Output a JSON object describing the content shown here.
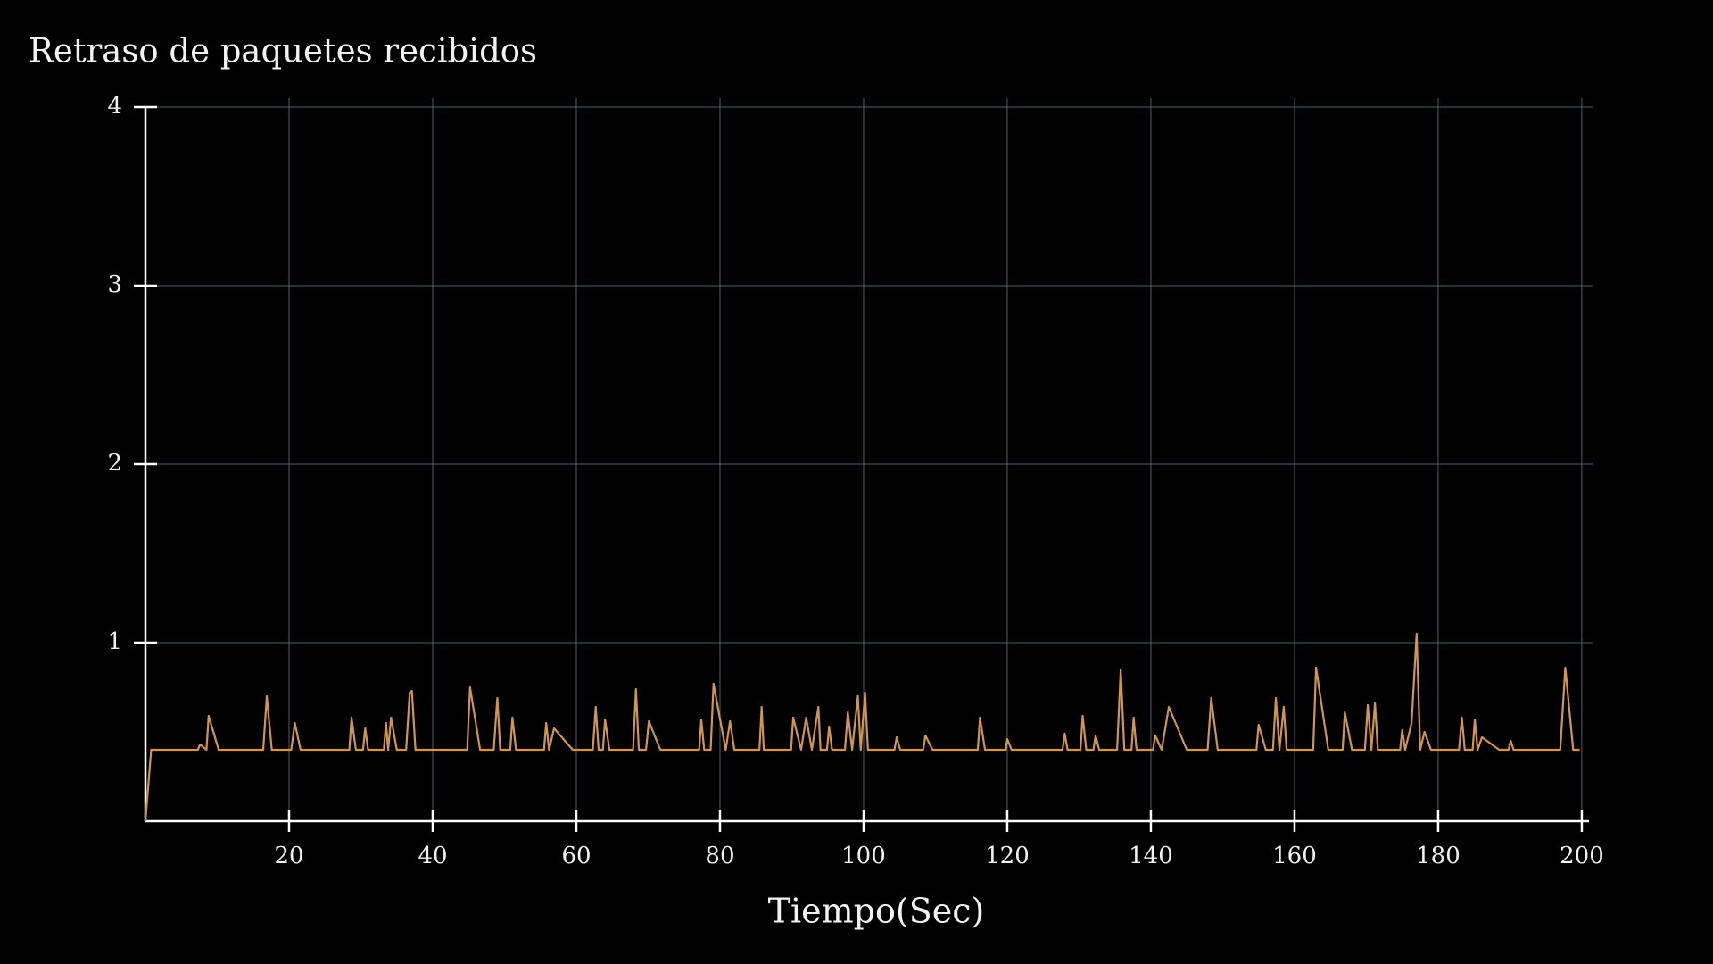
{
  "chart_data": {
    "type": "line",
    "title": "Retraso de paquetes recibidos",
    "x_label": "Tiempo(Sec)",
    "xlim": [
      0,
      201
    ],
    "ylim": [
      0,
      4
    ],
    "xticks": [
      20,
      40,
      60,
      80,
      100,
      120,
      140,
      160,
      180,
      200
    ],
    "yticks": [
      1,
      2,
      3,
      4
    ],
    "grid": true,
    "series": [
      {
        "color": "#d4954a",
        "x": [
          0,
          0.8,
          7.3,
          7.6,
          8.5,
          8.8,
          10.2,
          16.4,
          16.9,
          17.6,
          20.3,
          20.8,
          21.6,
          28.4,
          28.7,
          29.3,
          30.3,
          30.6,
          31,
          33.2,
          33.5,
          33.8,
          34.2,
          35,
          36.3,
          36.8,
          37.1,
          37.6,
          44.8,
          45.2,
          46.6,
          48.5,
          49,
          49.4,
          50.8,
          51.1,
          51.6,
          55.5,
          55.8,
          56.2,
          56.9,
          59.5,
          62.3,
          62.7,
          63.1,
          63.7,
          64,
          64.6,
          67.9,
          68.3,
          68.7,
          69.7,
          70.1,
          71.7,
          77.1,
          77.4,
          77.8,
          78.7,
          79.1,
          80.8,
          81.4,
          82,
          85.5,
          85.8,
          86.1,
          89.9,
          90.2,
          91.3,
          92,
          92.8,
          93.7,
          94,
          94.9,
          95.2,
          95.6,
          97.4,
          97.8,
          98.4,
          99.2,
          99.6,
          100.2,
          100.6,
          104.3,
          104.6,
          105.1,
          108.3,
          108.6,
          109.6,
          115.9,
          116.2,
          116.9,
          119.8,
          120,
          120.6,
          127.7,
          128,
          128.4,
          130.2,
          130.5,
          131,
          132,
          132.3,
          132.8,
          135.3,
          135.8,
          136.3,
          137.3,
          137.6,
          138,
          140.3,
          140.6,
          141.5,
          142.5,
          145,
          147.9,
          148.4,
          149.3,
          154.7,
          155,
          156,
          157,
          157.4,
          157.9,
          158.5,
          158.9,
          162.6,
          163,
          164.7,
          166.7,
          167,
          168,
          169.8,
          170.2,
          170.7,
          171.2,
          171.6,
          174.7,
          175,
          175.4,
          176.3,
          177,
          177.5,
          178.1,
          179,
          182.9,
          183.3,
          183.7,
          184.8,
          185.1,
          185.5,
          186.1,
          188.5,
          189.8,
          190.1,
          190.5,
          197,
          197.7,
          198.8,
          199.7
        ],
        "values": [
          0,
          0.4,
          0.4,
          0.43,
          0.4,
          0.59,
          0.4,
          0.4,
          0.7,
          0.4,
          0.4,
          0.55,
          0.4,
          0.4,
          0.58,
          0.4,
          0.4,
          0.52,
          0.4,
          0.4,
          0.55,
          0.4,
          0.58,
          0.4,
          0.4,
          0.72,
          0.73,
          0.4,
          0.4,
          0.75,
          0.4,
          0.4,
          0.69,
          0.4,
          0.4,
          0.58,
          0.4,
          0.4,
          0.55,
          0.4,
          0.52,
          0.4,
          0.4,
          0.64,
          0.4,
          0.4,
          0.57,
          0.4,
          0.4,
          0.74,
          0.4,
          0.4,
          0.56,
          0.4,
          0.4,
          0.57,
          0.4,
          0.4,
          0.77,
          0.4,
          0.56,
          0.4,
          0.4,
          0.64,
          0.4,
          0.4,
          0.58,
          0.4,
          0.58,
          0.4,
          0.64,
          0.4,
          0.4,
          0.53,
          0.4,
          0.4,
          0.61,
          0.4,
          0.7,
          0.4,
          0.72,
          0.4,
          0.4,
          0.47,
          0.4,
          0.4,
          0.48,
          0.4,
          0.4,
          0.58,
          0.4,
          0.4,
          0.46,
          0.4,
          0.4,
          0.49,
          0.4,
          0.4,
          0.59,
          0.4,
          0.4,
          0.48,
          0.4,
          0.4,
          0.85,
          0.4,
          0.4,
          0.58,
          0.4,
          0.4,
          0.48,
          0.4,
          0.64,
          0.4,
          0.4,
          0.69,
          0.4,
          0.4,
          0.54,
          0.4,
          0.4,
          0.69,
          0.4,
          0.64,
          0.4,
          0.4,
          0.86,
          0.4,
          0.4,
          0.61,
          0.4,
          0.4,
          0.65,
          0.4,
          0.66,
          0.4,
          0.4,
          0.51,
          0.4,
          0.55,
          1.05,
          0.4,
          0.5,
          0.4,
          0.4,
          0.58,
          0.4,
          0.4,
          0.57,
          0.4,
          0.47,
          0.4,
          0.4,
          0.45,
          0.4,
          0.4,
          0.86,
          0.4,
          0.4
        ]
      }
    ]
  }
}
